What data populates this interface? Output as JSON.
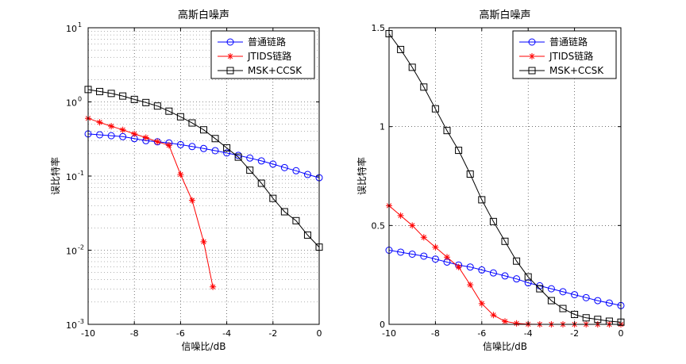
{
  "chart_data": [
    {
      "type": "line",
      "title": "高斯白噪声",
      "xlabel": "信噪比/dB",
      "ylabel": "误比特率",
      "yscale": "log",
      "xlim": [
        -10,
        0
      ],
      "ylim": [
        0.001,
        10
      ],
      "grid": true,
      "legend_position": "top-right",
      "x_ticks": [
        "-10",
        "-8",
        "-6",
        "-4",
        "-2",
        "0"
      ],
      "y_ticks": [
        {
          "base": "10",
          "exp": "-3"
        },
        {
          "base": "10",
          "exp": "-2"
        },
        {
          "base": "10",
          "exp": "-1"
        },
        {
          "base": "10",
          "exp": "0"
        },
        {
          "base": "10",
          "exp": "1"
        }
      ],
      "series": [
        {
          "name": "普通链路",
          "color": "#0000ff",
          "marker": "circle",
          "x": [
            -10,
            -9.5,
            -9,
            -8.5,
            -8,
            -7.5,
            -7,
            -6.5,
            -6,
            -5.5,
            -5,
            -4.5,
            -4,
            -3.5,
            -3,
            -2.5,
            -2,
            -1.5,
            -1,
            -0.5,
            0
          ],
          "y": [
            0.37,
            0.36,
            0.35,
            0.34,
            0.32,
            0.3,
            0.29,
            0.28,
            0.265,
            0.25,
            0.235,
            0.22,
            0.205,
            0.19,
            0.175,
            0.16,
            0.145,
            0.13,
            0.118,
            0.105,
            0.095
          ]
        },
        {
          "name": "JTIDS链路",
          "color": "#ff0000",
          "marker": "star",
          "x": [
            -10,
            -9.5,
            -9,
            -8.5,
            -8,
            -7.5,
            -7,
            -6.5,
            -6,
            -5.5,
            -5,
            -4.6
          ],
          "y": [
            0.6,
            0.53,
            0.47,
            0.42,
            0.37,
            0.33,
            0.29,
            0.26,
            0.105,
            0.047,
            0.013,
            0.0032
          ]
        },
        {
          "name": "MSK+CCSK",
          "color": "#000000",
          "marker": "square",
          "x": [
            -10,
            -9.5,
            -9,
            -8.5,
            -8,
            -7.5,
            -7,
            -6.5,
            -6,
            -5.5,
            -5,
            -4.5,
            -4,
            -3.5,
            -3,
            -2.5,
            -2,
            -1.5,
            -1,
            -0.5,
            0
          ],
          "y": [
            1.47,
            1.38,
            1.3,
            1.2,
            1.08,
            0.98,
            0.88,
            0.75,
            0.63,
            0.52,
            0.42,
            0.32,
            0.24,
            0.18,
            0.12,
            0.08,
            0.05,
            0.033,
            0.025,
            0.016,
            0.011
          ]
        }
      ]
    },
    {
      "type": "line",
      "title": "高斯白噪声",
      "xlabel": "信噪比/dB",
      "ylabel": "误比特率",
      "yscale": "linear",
      "xlim": [
        -10,
        0
      ],
      "ylim": [
        0,
        1.5
      ],
      "grid": true,
      "legend_position": "top-right",
      "x_ticks": [
        "-10",
        "-8",
        "-6",
        "-4",
        "-2",
        "0"
      ],
      "y_ticks": [
        "0",
        "0.5",
        "1",
        "1.5"
      ],
      "series": [
        {
          "name": "普通链路",
          "color": "#0000ff",
          "marker": "circle",
          "x": [
            -10,
            -9.5,
            -9,
            -8.5,
            -8,
            -7.5,
            -7,
            -6.5,
            -6,
            -5.5,
            -5,
            -4.5,
            -4,
            -3.5,
            -3,
            -2.5,
            -2,
            -1.5,
            -1,
            -0.5,
            0
          ],
          "y": [
            0.375,
            0.365,
            0.355,
            0.345,
            0.33,
            0.315,
            0.3,
            0.29,
            0.275,
            0.26,
            0.245,
            0.23,
            0.21,
            0.195,
            0.18,
            0.165,
            0.15,
            0.135,
            0.12,
            0.108,
            0.095
          ]
        },
        {
          "name": "JTIDS链路",
          "color": "#ff0000",
          "marker": "star",
          "x": [
            -10,
            -9.5,
            -9,
            -8.5,
            -8,
            -7.5,
            -7,
            -6.5,
            -6,
            -5.5,
            -5,
            -4.5,
            -4,
            -3.5,
            -3,
            -2.5,
            -2,
            -1.5,
            -1,
            -0.5,
            0
          ],
          "y": [
            0.6,
            0.55,
            0.5,
            0.44,
            0.39,
            0.34,
            0.29,
            0.2,
            0.105,
            0.047,
            0.015,
            0.005,
            0.001,
            0,
            0,
            0,
            0,
            0,
            0,
            0,
            0
          ]
        },
        {
          "name": "MSK+CCSK",
          "color": "#000000",
          "marker": "square",
          "x": [
            -10,
            -9.5,
            -9,
            -8.5,
            -8,
            -7.5,
            -7,
            -6.5,
            -6,
            -5.5,
            -5,
            -4.5,
            -4,
            -3.5,
            -3,
            -2.5,
            -2,
            -1.5,
            -1,
            -0.5,
            0
          ],
          "y": [
            1.47,
            1.39,
            1.3,
            1.2,
            1.09,
            0.98,
            0.88,
            0.76,
            0.63,
            0.52,
            0.42,
            0.32,
            0.24,
            0.18,
            0.12,
            0.08,
            0.05,
            0.033,
            0.025,
            0.016,
            0.011
          ]
        }
      ]
    }
  ]
}
